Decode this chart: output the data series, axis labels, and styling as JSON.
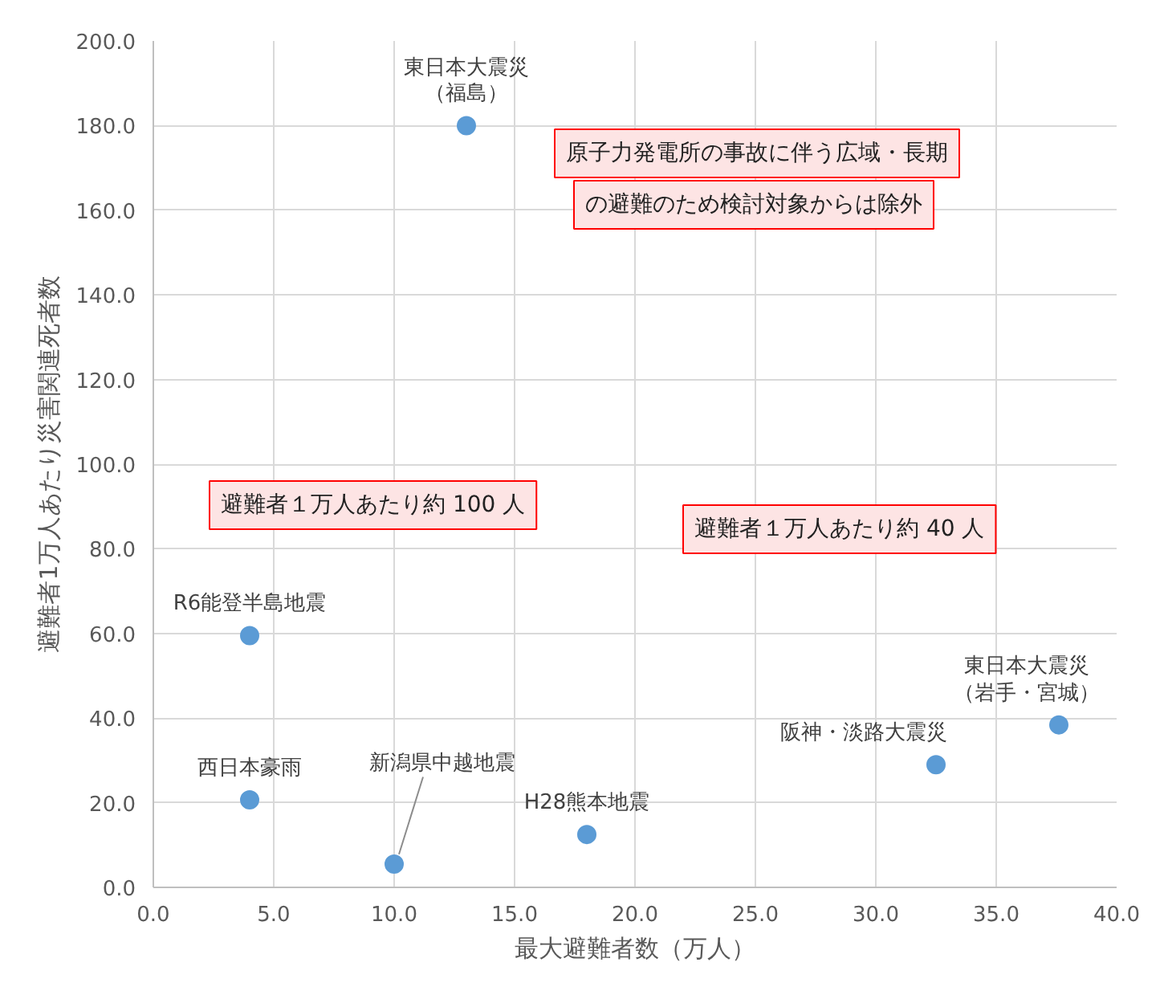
{
  "chart_data": {
    "type": "scatter",
    "xlabel": "最大避難者数（万人）",
    "ylabel": "避難者1万人あたり災害関連死者数",
    "x": [
      13,
      4,
      4,
      10,
      18,
      32.5,
      37.6
    ],
    "series": [
      {
        "color": "#5b9bd5",
        "values": [
          180,
          59.5,
          20.7,
          5.5,
          12.5,
          29,
          38.4
        ]
      }
    ],
    "xlim": [
      0,
      40
    ],
    "ylim": [
      0,
      200
    ],
    "xticks": [
      {
        "value": 0,
        "label": "0.0"
      },
      {
        "value": 5,
        "label": "5.0"
      },
      {
        "value": 10,
        "label": "10.0"
      },
      {
        "value": 15,
        "label": "15.0"
      },
      {
        "value": 20,
        "label": "20.0"
      },
      {
        "value": 25,
        "label": "25.0"
      },
      {
        "value": 30,
        "label": "30.0"
      },
      {
        "value": 35,
        "label": "35.0"
      },
      {
        "value": 40,
        "label": "40.0"
      }
    ],
    "yticks": [
      {
        "value": 0,
        "label": "0.0"
      },
      {
        "value": 20,
        "label": "20.0"
      },
      {
        "value": 40,
        "label": "40.0"
      },
      {
        "value": 60,
        "label": "60.0"
      },
      {
        "value": 80,
        "label": "80.0"
      },
      {
        "value": 100,
        "label": "100.0"
      },
      {
        "value": 120,
        "label": "120.0"
      },
      {
        "value": 140,
        "label": "140.0"
      },
      {
        "value": 160,
        "label": "160.0"
      },
      {
        "value": 180,
        "label": "180.0"
      },
      {
        "value": 200,
        "label": "200.0"
      }
    ],
    "grid": true,
    "marker": "circle",
    "annotations": [
      {
        "text": "東日本大震災",
        "x": 13,
        "y": 180
      },
      {
        "text": "（福島）",
        "x": 13,
        "y": 180
      },
      {
        "text": "R6能登半島地震",
        "x": 4,
        "y": 59.5
      },
      {
        "text": "西日本豪雨",
        "x": 4,
        "y": 20.7
      },
      {
        "text": "新潟県中越地震",
        "x": 10,
        "y": 5.5
      },
      {
        "text": "H28熊本地震",
        "x": 18,
        "y": 12.5
      },
      {
        "text": "阪神・淡路大震災",
        "x": 32.5,
        "y": 29
      },
      {
        "text": "東日本大震災",
        "x": 37.6,
        "y": 38.4
      },
      {
        "text": "（岩手・宮城）",
        "x": 37.6,
        "y": 38.4
      },
      "原子力発電所の事故に伴う広域・長期",
      "の避難のため検討対象からは除外",
      "避難者１万人あたり約 100 人",
      "避難者１万人あたり約 40 人"
    ]
  }
}
